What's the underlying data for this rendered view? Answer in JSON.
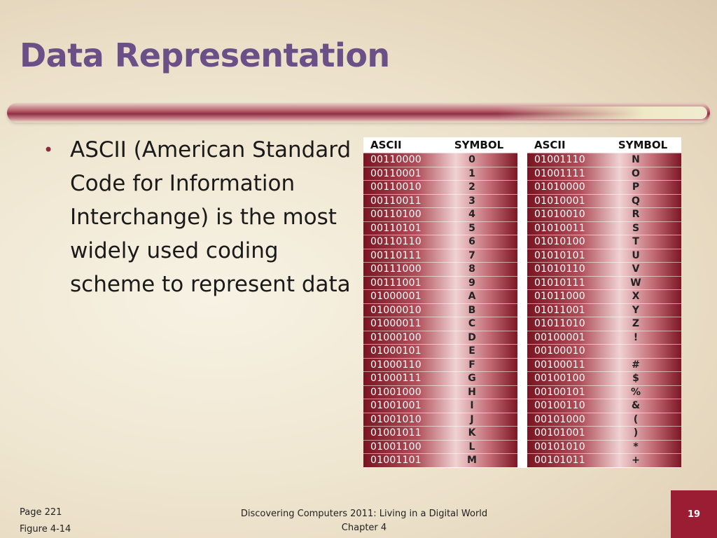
{
  "slide": {
    "title": "Data Representation",
    "bullet": "ASCII (American Standard Code for Information Interchange) is the most widely used coding scheme to represent data",
    "bullet_glyph": "•"
  },
  "figure": {
    "headers": {
      "ascii": "ASCII",
      "symbol": "SYMBOL"
    },
    "left_rows": [
      {
        "code": "00110000",
        "symbol": "0"
      },
      {
        "code": "00110001",
        "symbol": "1"
      },
      {
        "code": "00110010",
        "symbol": "2"
      },
      {
        "code": "00110011",
        "symbol": "3"
      },
      {
        "code": "00110100",
        "symbol": "4"
      },
      {
        "code": "00110101",
        "symbol": "5"
      },
      {
        "code": "00110110",
        "symbol": "6"
      },
      {
        "code": "00110111",
        "symbol": "7"
      },
      {
        "code": "00111000",
        "symbol": "8"
      },
      {
        "code": "00111001",
        "symbol": "9"
      },
      {
        "code": "01000001",
        "symbol": "A"
      },
      {
        "code": "01000010",
        "symbol": "B"
      },
      {
        "code": "01000011",
        "symbol": "C"
      },
      {
        "code": "01000100",
        "symbol": "D"
      },
      {
        "code": "01000101",
        "symbol": "E"
      },
      {
        "code": "01000110",
        "symbol": "F"
      },
      {
        "code": "01000111",
        "symbol": "G"
      },
      {
        "code": "01001000",
        "symbol": "H"
      },
      {
        "code": "01001001",
        "symbol": "I"
      },
      {
        "code": "01001010",
        "symbol": "J"
      },
      {
        "code": "01001011",
        "symbol": "K"
      },
      {
        "code": "01001100",
        "symbol": "L"
      },
      {
        "code": "01001101",
        "symbol": "M"
      }
    ],
    "right_rows": [
      {
        "code": "01001110",
        "symbol": "N"
      },
      {
        "code": "01001111",
        "symbol": "O"
      },
      {
        "code": "01010000",
        "symbol": "P"
      },
      {
        "code": "01010001",
        "symbol": "Q"
      },
      {
        "code": "01010010",
        "symbol": "R"
      },
      {
        "code": "01010011",
        "symbol": "S"
      },
      {
        "code": "01010100",
        "symbol": "T"
      },
      {
        "code": "01010101",
        "symbol": "U"
      },
      {
        "code": "01010110",
        "symbol": "V"
      },
      {
        "code": "01010111",
        "symbol": "W"
      },
      {
        "code": "01011000",
        "symbol": "X"
      },
      {
        "code": "01011001",
        "symbol": "Y"
      },
      {
        "code": "01011010",
        "symbol": "Z"
      },
      {
        "code": "00100001",
        "symbol": "!"
      },
      {
        "code": "00100010",
        "symbol": ""
      },
      {
        "code": "00100011",
        "symbol": "#"
      },
      {
        "code": "00100100",
        "symbol": "$"
      },
      {
        "code": "00100101",
        "symbol": "%"
      },
      {
        "code": "00100110",
        "symbol": "&"
      },
      {
        "code": "00101000",
        "symbol": "("
      },
      {
        "code": "00101001",
        "symbol": ")"
      },
      {
        "code": "00101010",
        "symbol": "*"
      },
      {
        "code": "00101011",
        "symbol": "+"
      }
    ]
  },
  "footer": {
    "page_ref": "Page 221",
    "figure_ref": "Figure 4-14",
    "book_title": "Discovering Computers 2011: Living in a Digital World",
    "chapter": "Chapter 4",
    "slide_number": "19"
  },
  "colors": {
    "title": "#6b4f87",
    "accent_red": "#9b1d34",
    "table_dark": "#7a1420"
  }
}
